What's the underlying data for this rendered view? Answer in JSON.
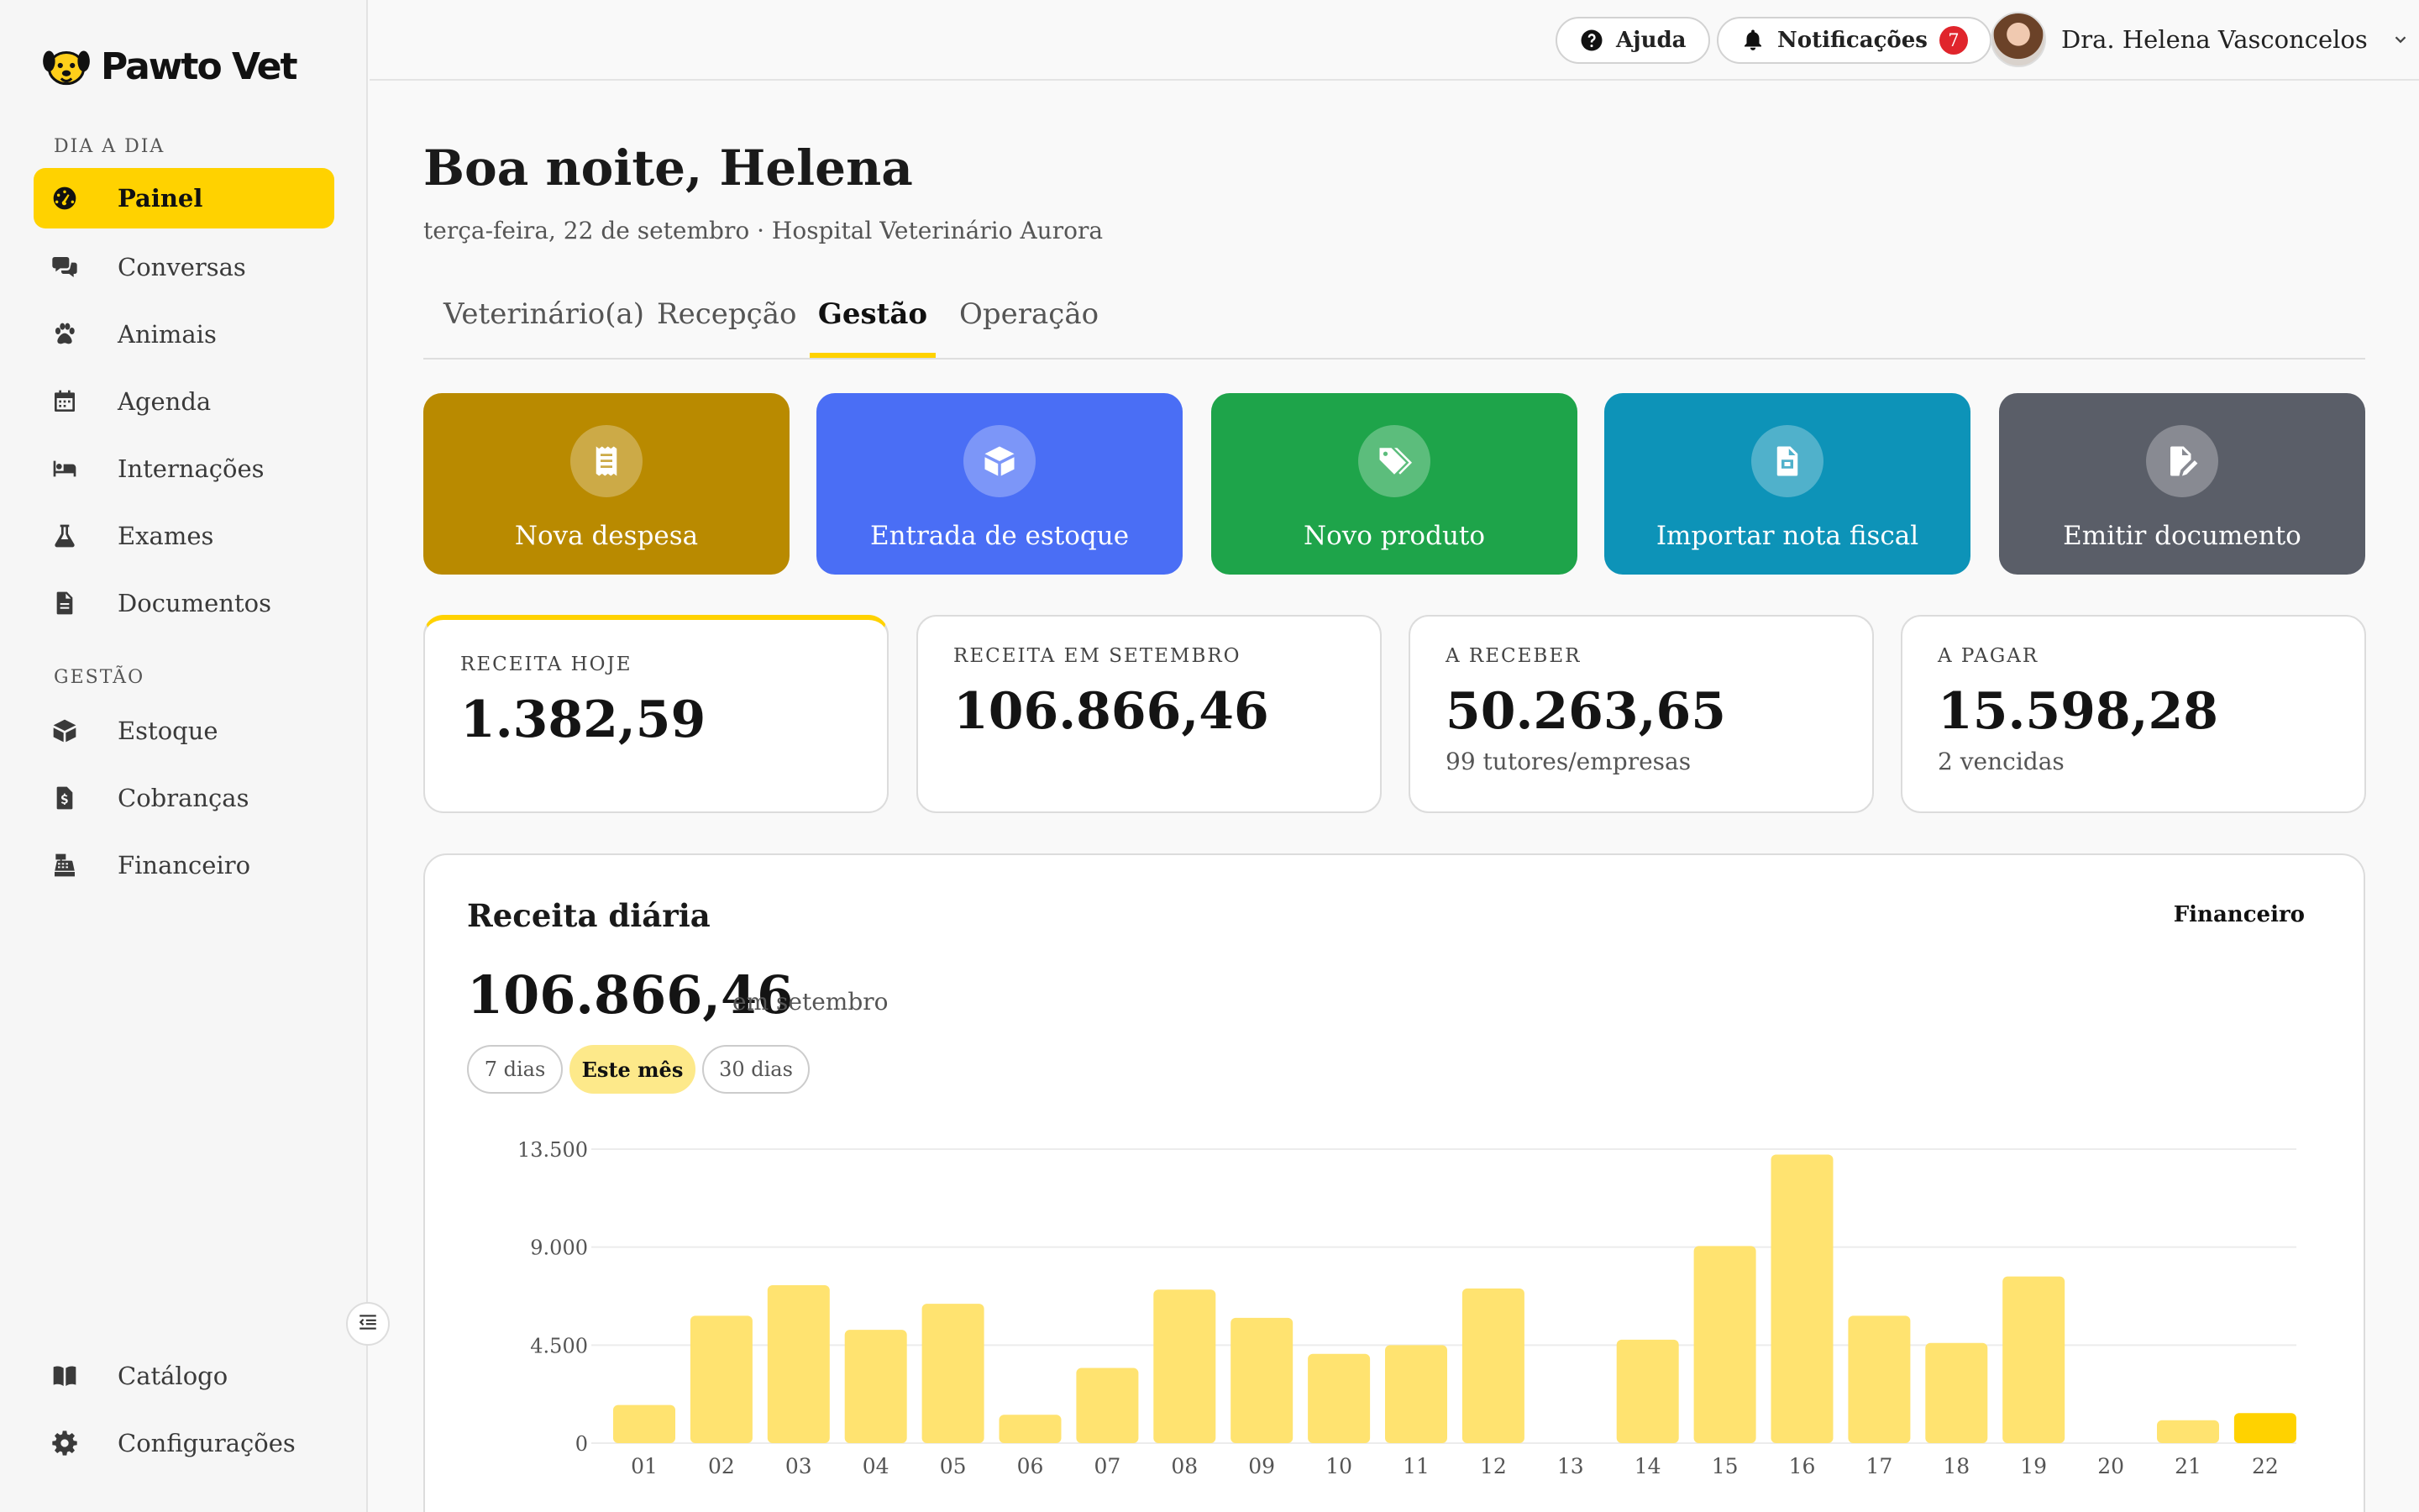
{
  "app": {
    "name": "Pawto Vet"
  },
  "sidebar": {
    "sections": [
      {
        "label": "DIA A DIA"
      },
      {
        "label": "GESTÃO"
      }
    ],
    "items": [
      {
        "label": "Painel",
        "icon": "gauge-icon"
      },
      {
        "label": "Conversas",
        "icon": "chat-icon"
      },
      {
        "label": "Animais",
        "icon": "paw-icon"
      },
      {
        "label": "Agenda",
        "icon": "calendar-icon"
      },
      {
        "label": "Internações",
        "icon": "bed-icon"
      },
      {
        "label": "Exames",
        "icon": "flask-icon"
      },
      {
        "label": "Documentos",
        "icon": "document-icon"
      },
      {
        "label": "Estoque",
        "icon": "box-icon"
      },
      {
        "label": "Cobranças",
        "icon": "invoice-icon"
      },
      {
        "label": "Financeiro",
        "icon": "cash-register-icon"
      },
      {
        "label": "Catálogo",
        "icon": "book-icon"
      },
      {
        "label": "Configurações",
        "icon": "gear-icon"
      }
    ]
  },
  "topbar": {
    "help_label": "Ajuda",
    "notifications_label": "Notificações",
    "notifications_count": "7",
    "user_name": "Dra. Helena Vasconcelos"
  },
  "main": {
    "greeting": "Boa noite, Helena",
    "subtitle": "terça-feira, 22 de setembro · Hospital Veterinário Aurora",
    "tabs": [
      {
        "label": "Veterinário(a)"
      },
      {
        "label": "Recepção"
      },
      {
        "label": "Gestão"
      },
      {
        "label": "Operação"
      }
    ],
    "active_tab": "Gestão",
    "actions": [
      {
        "label": "Nova despesa",
        "color": "#b98a00",
        "icon": "receipt-icon"
      },
      {
        "label": "Entrada de estoque",
        "color": "#4a6ef5",
        "icon": "box-icon"
      },
      {
        "label": "Novo produto",
        "color": "#1ea44a",
        "icon": "tags-icon"
      },
      {
        "label": "Importar nota fiscal",
        "color": "#0d93b8",
        "icon": "file-invoice-icon"
      },
      {
        "label": "Emitir documento",
        "color": "#5a5e68",
        "icon": "file-signature-icon"
      }
    ],
    "kpis": [
      {
        "label": "RECEITA HOJE",
        "value": "1.382,59",
        "sub": ""
      },
      {
        "label": "RECEITA EM SETEMBRO",
        "value": "106.866,46",
        "sub": ""
      },
      {
        "label": "A RECEBER",
        "value": "50.263,65",
        "sub": "99 tutores/empresas"
      },
      {
        "label": "A PAGAR",
        "value": "15.598,28",
        "sub": "2 vencidas"
      }
    ],
    "revenue": {
      "title": "Receita diária",
      "link": "Financeiro",
      "total": "106.866,46",
      "total_caption": "em setembro",
      "ranges": [
        {
          "label": "7 dias"
        },
        {
          "label": "Este mês"
        },
        {
          "label": "30 dias"
        }
      ],
      "selected_range": "Este mês"
    }
  },
  "chart_data": {
    "type": "bar",
    "categories": [
      "01",
      "02",
      "03",
      "04",
      "05",
      "06",
      "07",
      "08",
      "09",
      "10",
      "11",
      "12",
      "13",
      "14",
      "15",
      "16",
      "17",
      "18",
      "19",
      "20",
      "21",
      "22"
    ],
    "values": [
      1750,
      5850,
      7250,
      5200,
      6400,
      1300,
      3450,
      7050,
      5750,
      4100,
      4500,
      7100,
      0,
      4750,
      9050,
      13250,
      5850,
      4600,
      7650,
      0,
      1050,
      1380
    ],
    "highlight_index": 21,
    "y_ticks": [
      "0",
      "4.500",
      "9.000",
      "13.500"
    ],
    "ylim": [
      0,
      13500
    ],
    "grid": true,
    "bar_color": "#ffe370",
    "highlight_color": "#ffd200"
  }
}
